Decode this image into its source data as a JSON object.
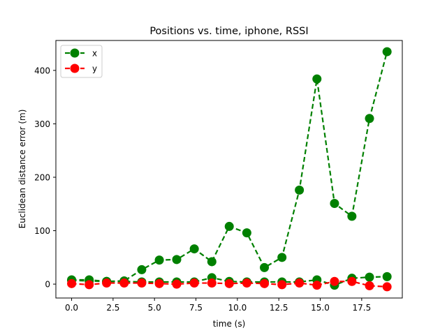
{
  "chart_data": {
    "type": "line",
    "title": "Positions vs. time, iphone, RSSI",
    "xlabel": "time (s)",
    "ylabel": "Euclidean distance error (m)",
    "xlim": [
      -0.95,
      19.95
    ],
    "ylim": [
      -26,
      456
    ],
    "xticks": [
      0.0,
      2.5,
      5.0,
      7.5,
      10.0,
      12.5,
      15.0,
      17.5
    ],
    "xtick_labels": [
      "0.0",
      "2.5",
      "5.0",
      "7.5",
      "10.0",
      "12.5",
      "15.0",
      "17.5"
    ],
    "yticks": [
      0,
      100,
      200,
      300,
      400
    ],
    "ytick_labels": [
      "0",
      "100",
      "200",
      "300",
      "400"
    ],
    "grid": false,
    "legend_position": "top-left",
    "series": [
      {
        "name": "x",
        "color": "#008000",
        "marker": "circle",
        "linestyle": "dashed",
        "sub_series": [
          {
            "x": [
              0.0,
              1.06,
              2.11,
              3.17,
              4.23,
              5.29,
              6.34,
              7.4,
              8.46,
              9.51,
              10.57,
              11.63,
              12.69,
              13.74,
              14.8,
              15.86,
              16.91,
              17.97,
              19.03
            ],
            "y": [
              8,
              8,
              5,
              6,
              27,
              45,
              46,
              66,
              42,
              108,
              96,
              31,
              50,
              176,
              384,
              151,
              127,
              310,
              435
            ]
          },
          {
            "x": [
              0.0,
              1.06,
              2.11,
              3.17,
              4.23,
              5.29,
              6.34,
              7.4,
              8.46,
              9.51,
              10.57,
              11.63,
              12.69,
              13.74,
              14.8,
              15.86,
              16.91,
              17.97,
              19.03
            ],
            "y": [
              7,
              6,
              5,
              5,
              4,
              4,
              4,
              4,
              12,
              5,
              4,
              4,
              4,
              4,
              8,
              -2,
              11,
              13,
              14
            ]
          }
        ]
      },
      {
        "name": "y",
        "color": "#ff0000",
        "marker": "circle",
        "linestyle": "dashed",
        "sub_series": [
          {
            "x": [
              0.0,
              1.06,
              2.11,
              3.17,
              4.23,
              5.29,
              6.34,
              7.4,
              8.46,
              9.51,
              10.57,
              11.63,
              12.69,
              13.74,
              14.8,
              15.86,
              16.91,
              17.97,
              19.03
            ],
            "y": [
              1,
              -1,
              2,
              2,
              2,
              1,
              0,
              2,
              2,
              1,
              2,
              1,
              -1,
              2,
              -2,
              5,
              5,
              -3,
              -5
            ]
          }
        ]
      }
    ]
  }
}
